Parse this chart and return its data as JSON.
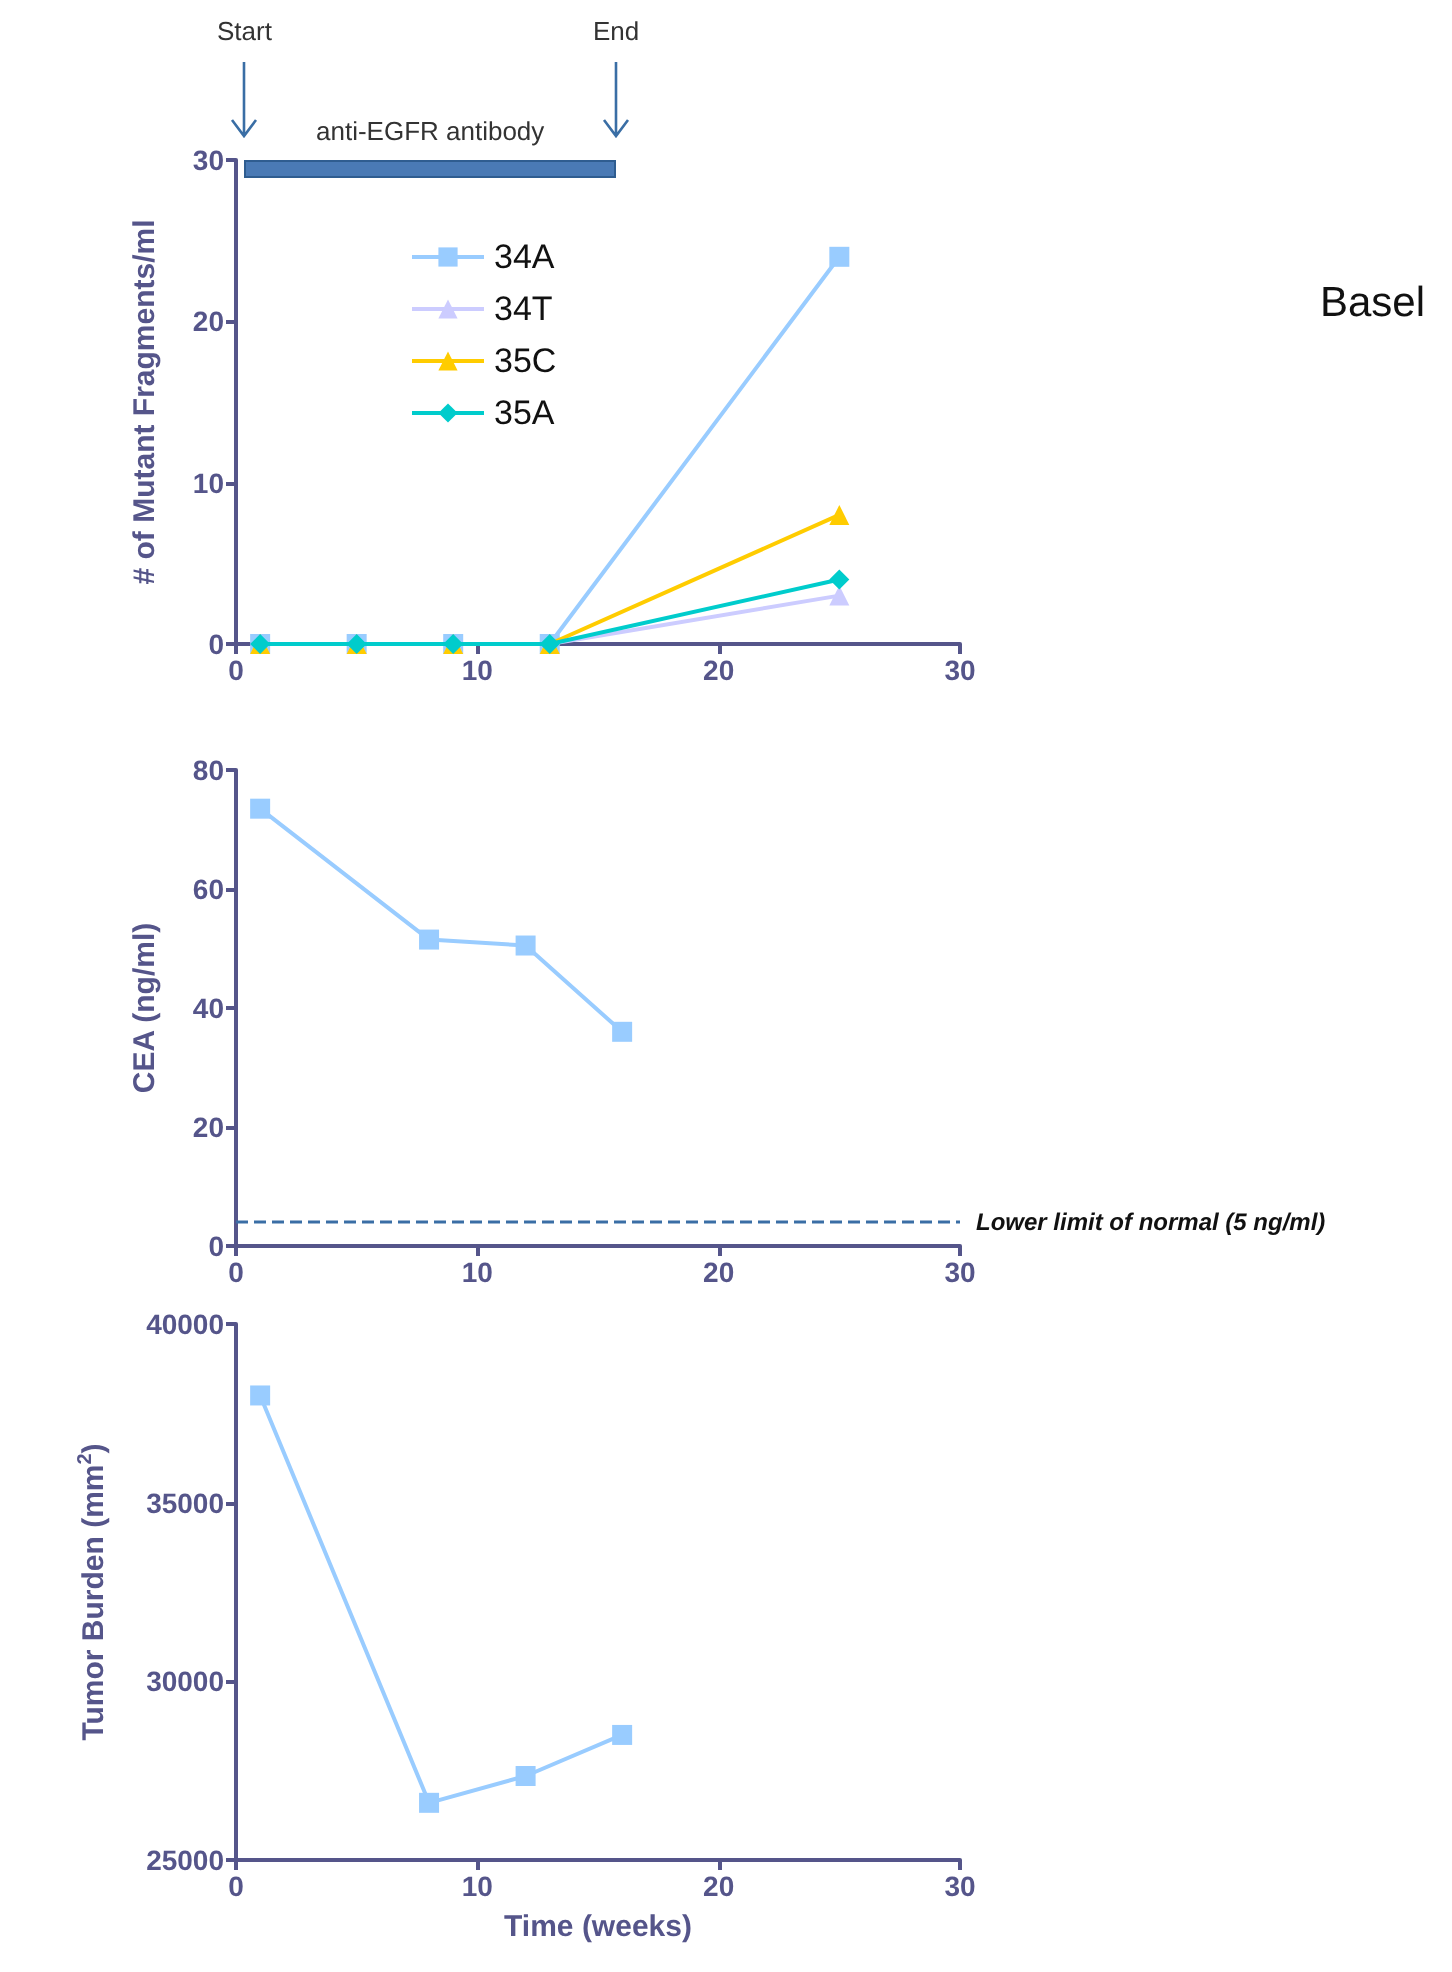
{
  "chart_data": [
    {
      "type": "line",
      "ylabel": "# of Mutant Fragments/ml",
      "x": [
        1,
        5,
        9,
        13,
        25
      ],
      "series": [
        {
          "name": "34A",
          "color": "#99ccff",
          "marker": "square",
          "values": [
            0,
            0,
            0,
            0,
            24
          ]
        },
        {
          "name": "34T",
          "color": "#ccccff",
          "marker": "triangle",
          "values": [
            0,
            0,
            0,
            0,
            3
          ]
        },
        {
          "name": "35C",
          "color": "#ffcc00",
          "marker": "triangle",
          "values": [
            0,
            0,
            0,
            0,
            8
          ]
        },
        {
          "name": "35A",
          "color": "#00cccc",
          "marker": "diamond",
          "values": [
            0,
            0,
            0,
            0,
            4
          ]
        }
      ],
      "xlim": [
        0,
        30
      ],
      "xticks": [
        0,
        10,
        20,
        30
      ],
      "ylim": [
        0,
        30
      ],
      "yticks": [
        0,
        10,
        20,
        30
      ],
      "annotations": [
        "Start",
        "End",
        "anti-EGFR antibody",
        "Basel"
      ],
      "legend": "top left",
      "grid": false
    },
    {
      "type": "line",
      "ylabel": "CEA (ng/ml)",
      "x": [
        1,
        8,
        12,
        16
      ],
      "series": [
        {
          "color": "#99ccff",
          "marker": "square",
          "values": [
            73.5,
            51.5,
            50.5,
            36
          ]
        }
      ],
      "xlim": [
        0,
        30
      ],
      "xticks": [
        0,
        10,
        20,
        30
      ],
      "ylim": [
        0,
        80
      ],
      "yticks": [
        0,
        20,
        40,
        60,
        80
      ],
      "ref_lines": [
        {
          "axis": "y",
          "value": 4,
          "label": "Lower limit of normal (5 ng/ml)",
          "color": "#3a6ea5",
          "line_style": "dashed"
        }
      ],
      "grid": false
    },
    {
      "type": "line",
      "xlabel": "Time (weeks)",
      "ylabel": "Tumor Burden (mm$^{2}$)",
      "x": [
        1,
        8,
        12,
        16
      ],
      "series": [
        {
          "color": "#99ccff",
          "marker": "square",
          "values": [
            38000,
            26600,
            27350,
            28500
          ]
        }
      ],
      "xlim": [
        0,
        30
      ],
      "xticks": [
        0,
        10,
        20,
        30
      ],
      "ylim": [
        25000,
        40000
      ],
      "yticks": [
        25000,
        30000,
        35000,
        40000
      ],
      "grid": false
    }
  ]
}
